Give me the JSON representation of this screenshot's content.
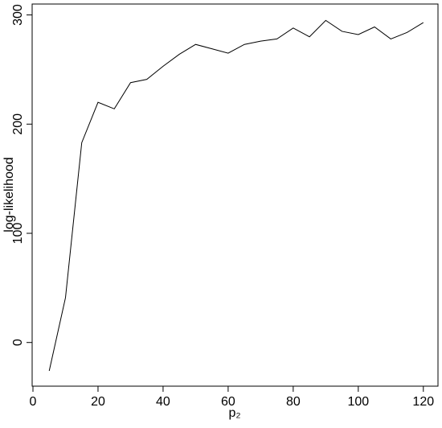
{
  "chart_data": {
    "type": "line",
    "xlabel": "p₂",
    "ylabel": "log-likelihood",
    "x": [
      5,
      10,
      15,
      20,
      25,
      30,
      35,
      40,
      45,
      50,
      55,
      60,
      65,
      70,
      75,
      80,
      85,
      90,
      95,
      100,
      105,
      110,
      115,
      120
    ],
    "values": [
      -26,
      41,
      183,
      220,
      214,
      238,
      241,
      253,
      264,
      273,
      269,
      265,
      273,
      276,
      278,
      288,
      280,
      295,
      285,
      282,
      289,
      278,
      284,
      293
    ],
    "color": "#000000",
    "xlim": [
      0,
      124.5
    ],
    "xticks": [
      0,
      20,
      40,
      60,
      80,
      100,
      120
    ],
    "ylim": [
      -40,
      310
    ],
    "yticks": [
      0,
      100,
      200,
      300
    ]
  }
}
